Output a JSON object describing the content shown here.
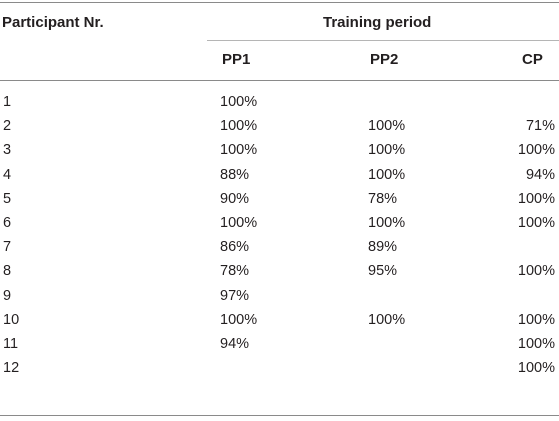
{
  "table": {
    "header": {
      "participant_label": "Participant Nr.",
      "group_label": "Training period",
      "columns": [
        "PP1",
        "PP2",
        "CP"
      ]
    },
    "rows": [
      {
        "participant": "1",
        "pp1": "100%",
        "pp2": "",
        "cp": ""
      },
      {
        "participant": "2",
        "pp1": "100%",
        "pp2": "100%",
        "cp": "71%"
      },
      {
        "participant": "3",
        "pp1": "100%",
        "pp2": "100%",
        "cp": "100%"
      },
      {
        "participant": "4",
        "pp1": "88%",
        "pp2": "100%",
        "cp": "94%"
      },
      {
        "participant": "5",
        "pp1": "90%",
        "pp2": "78%",
        "cp": "100%"
      },
      {
        "participant": "6",
        "pp1": "100%",
        "pp2": "100%",
        "cp": "100%"
      },
      {
        "participant": "7",
        "pp1": "86%",
        "pp2": "89%",
        "cp": ""
      },
      {
        "participant": "8",
        "pp1": "78%",
        "pp2": "95%",
        "cp": "100%"
      },
      {
        "participant": "9",
        "pp1": "97%",
        "pp2": "",
        "cp": ""
      },
      {
        "participant": "10",
        "pp1": "100%",
        "pp2": "100%",
        "cp": "100%"
      },
      {
        "participant": "11",
        "pp1": "94%",
        "pp2": "",
        "cp": "100%"
      },
      {
        "participant": "12",
        "pp1": "",
        "pp2": "",
        "cp": "100%"
      }
    ]
  }
}
